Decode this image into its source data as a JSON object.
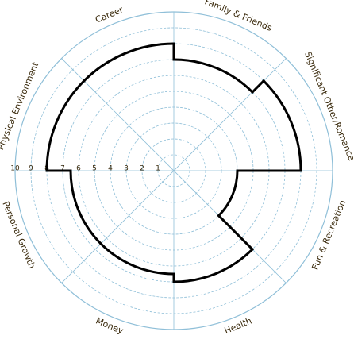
{
  "chart_data": {
    "type": "wheel",
    "categories": [
      "Career",
      "Family & Friends",
      "Significant Other/Romance",
      "Fun & Recreation",
      "Health",
      "Money",
      "Personal Growth",
      "Physical Environment"
    ],
    "values": [
      8,
      7,
      8,
      4,
      7,
      6.5,
      6.5,
      8
    ],
    "rlim": [
      0,
      10
    ],
    "rticks": [
      1,
      2,
      3,
      4,
      5,
      6,
      7,
      8,
      9,
      10
    ],
    "color": "#000000",
    "grid": true
  }
}
